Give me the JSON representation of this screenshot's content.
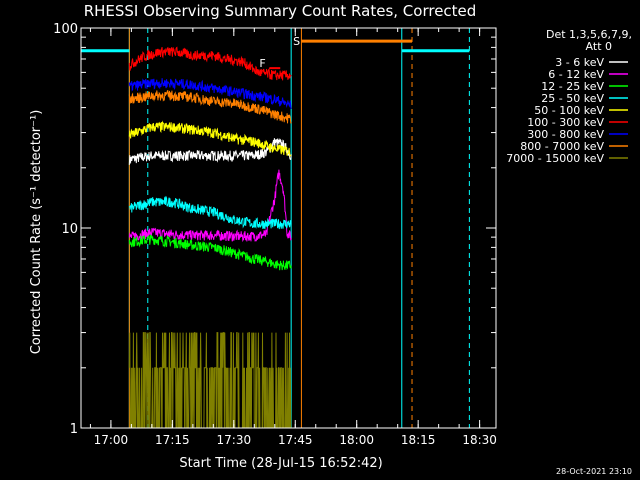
{
  "chart_data": {
    "type": "line",
    "title": "RHESSI Observing Summary Count Rates, Corrected",
    "xlabel": "Start Time (28-Jul-15 16:52:42)",
    "ylabel": "Corrected Count Rate (s⁻¹ detector⁻¹)",
    "yscale": "log",
    "ylim": [
      1,
      100
    ],
    "xlim": [
      "16:52:42",
      "18:34"
    ],
    "x_ticks": [
      "17:00",
      "17:15",
      "17:30",
      "17:45",
      "18:00",
      "18:15",
      "18:30"
    ],
    "y_ticks": [
      "1",
      "10",
      "100"
    ],
    "legend_title_1": "Det 1,3,5,6,7,9,",
    "legend_title_2": "Att 0",
    "legend_position": "right",
    "footer": "28-Oct-2021 23:10",
    "markers": {
      "flare": "F",
      "saa": "S"
    },
    "data_interval": [
      "17:04:30",
      "17:44:00"
    ],
    "series": [
      {
        "name": "3 - 6 keV",
        "color": "#ffffff",
        "x": [
          "17:04:30",
          "17:10",
          "17:15",
          "17:20",
          "17:25",
          "17:30",
          "17:35",
          "17:38",
          "17:40",
          "17:42",
          "17:44"
        ],
        "values": [
          22,
          23,
          23,
          23,
          23,
          23,
          23,
          24,
          27,
          26,
          23
        ]
      },
      {
        "name": "6 - 12 keV",
        "color": "#ff00ff",
        "x": [
          "17:04:30",
          "17:10",
          "17:15",
          "17:20",
          "17:25",
          "17:30",
          "17:35",
          "17:38",
          "17:40",
          "17:41",
          "17:42",
          "17:43",
          "17:44"
        ],
        "values": [
          9,
          9.5,
          9.3,
          9.2,
          9.2,
          9.1,
          9.1,
          9.3,
          14,
          19,
          16,
          9.5,
          9
        ]
      },
      {
        "name": "12 - 25 keV",
        "color": "#00ff00",
        "x": [
          "17:04:30",
          "17:10",
          "17:15",
          "17:20",
          "17:25",
          "17:30",
          "17:35",
          "17:38",
          "17:40",
          "17:42",
          "17:44"
        ],
        "values": [
          8.5,
          8.8,
          8.5,
          8.2,
          8,
          7.5,
          7,
          6.8,
          6.6,
          6.5,
          6.5
        ]
      },
      {
        "name": "25 - 50 keV",
        "color": "#00ffff",
        "x": [
          "17:04:30",
          "17:10",
          "17:15",
          "17:20",
          "17:25",
          "17:30",
          "17:35",
          "17:40",
          "17:44"
        ],
        "values": [
          12.5,
          13.5,
          13.5,
          12.5,
          12,
          11,
          10.5,
          10.5,
          10.5
        ]
      },
      {
        "name": "50 - 100 keV",
        "color": "#ffff00",
        "x": [
          "17:04:30",
          "17:10",
          "17:15",
          "17:20",
          "17:25",
          "17:30",
          "17:35",
          "17:40",
          "17:44"
        ],
        "values": [
          29,
          32,
          32,
          31,
          30,
          28,
          27,
          25,
          24
        ]
      },
      {
        "name": "100 - 300 keV",
        "color": "#ff0000",
        "x": [
          "17:04:30",
          "17:08",
          "17:12",
          "17:16",
          "17:20",
          "17:25",
          "17:28",
          "17:32",
          "17:36",
          "17:40",
          "17:44"
        ],
        "values": [
          65,
          72,
          76,
          76,
          73,
          73,
          70,
          68,
          60,
          58,
          58
        ]
      },
      {
        "name": "300 - 800 keV",
        "color": "#0000ff",
        "x": [
          "17:04:30",
          "17:10",
          "17:15",
          "17:20",
          "17:25",
          "17:30",
          "17:35",
          "17:40",
          "17:44"
        ],
        "values": [
          51,
          53,
          53,
          52,
          50,
          48,
          46,
          44,
          41
        ]
      },
      {
        "name": "800 - 7000 keV",
        "color": "#ff8000",
        "x": [
          "17:04:30",
          "17:10",
          "17:15",
          "17:20",
          "17:25",
          "17:30",
          "17:35",
          "17:40",
          "17:44"
        ],
        "values": [
          44,
          46,
          46,
          45,
          43,
          42,
          40,
          37,
          35
        ]
      },
      {
        "name": "7000 - 15000 keV",
        "color": "#808000",
        "x": [
          "17:04:30",
          "17:10",
          "17:15",
          "17:20",
          "17:25",
          "17:30",
          "17:35",
          "17:40",
          "17:44"
        ],
        "values": [
          1.5,
          2,
          2,
          1.8,
          1.5,
          1.4,
          1.4,
          1.4,
          1.4
        ]
      }
    ],
    "attenuator_lines": [
      {
        "color": "#00ffff",
        "style": "dashed",
        "time": "17:09"
      },
      {
        "color": "#00ffff",
        "style": "solid",
        "time": "17:04:30"
      },
      {
        "color": "#00ffff",
        "style": "solid",
        "time": "17:44:00"
      },
      {
        "color": "#00ffff",
        "style": "solid",
        "time": "18:11:00"
      },
      {
        "color": "#00ffff",
        "style": "dashed",
        "time": "18:27:30"
      },
      {
        "color": "#ff8000",
        "style": "solid",
        "time": "17:04:30"
      },
      {
        "color": "#ff8000",
        "style": "solid",
        "time": "17:46:30"
      },
      {
        "color": "#ff8000",
        "style": "dashed",
        "time": "18:13:30"
      }
    ]
  }
}
